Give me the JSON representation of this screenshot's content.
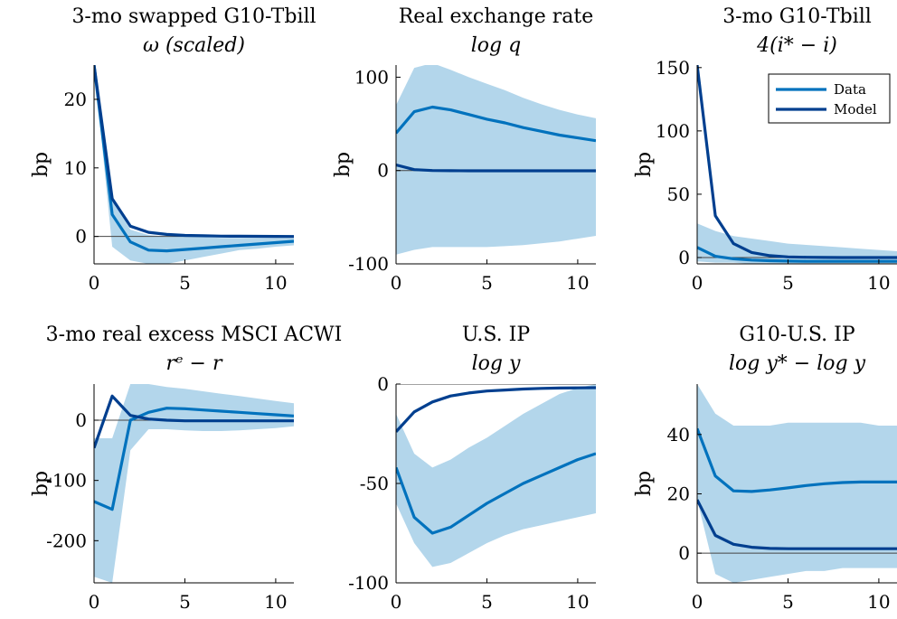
{
  "colors": {
    "data": "#0072BD",
    "model": "#003F8F",
    "band": "#B3D6EB",
    "axis": "#000000"
  },
  "legend": {
    "data": "Data",
    "model": "Model"
  },
  "chart_data": [
    {
      "type": "line",
      "title": "3-mo swapped G10-Tbill",
      "subtitle": "ω (scaled)",
      "ylabel": "bp",
      "xlim": [
        0,
        11
      ],
      "ylim": [
        -4,
        25
      ],
      "xticks": [
        0,
        5,
        10
      ],
      "yticks": [
        0,
        10,
        20
      ],
      "x": [
        0,
        1,
        2,
        3,
        4,
        5,
        6,
        7,
        8,
        9,
        10,
        11
      ],
      "band": {
        "lower": [
          25,
          -1.5,
          -3.5,
          -4,
          -4,
          -3.5,
          -3,
          -2.5,
          -2,
          -1.8,
          -1.5,
          -1.3
        ],
        "upper": [
          25,
          5.5,
          1,
          0.2,
          0,
          0,
          -0.1,
          -0.2,
          -0.2,
          -0.2,
          -0.2,
          -0.2
        ]
      },
      "series": [
        {
          "name": "Data",
          "values": [
            25,
            3.2,
            -0.8,
            -2,
            -2.1,
            -1.9,
            -1.7,
            -1.5,
            -1.3,
            -1.1,
            -0.9,
            -0.7
          ]
        },
        {
          "name": "Model",
          "values": [
            25,
            5.5,
            1.5,
            0.6,
            0.3,
            0.15,
            0.1,
            0.05,
            0.03,
            0.02,
            0.01,
            0
          ]
        }
      ]
    },
    {
      "type": "line",
      "title": "Real exchange rate",
      "subtitle": "log q",
      "ylabel": "bp",
      "xlim": [
        0,
        11
      ],
      "ylim": [
        -100,
        113
      ],
      "xticks": [
        0,
        5,
        10
      ],
      "yticks": [
        -100,
        0,
        100
      ],
      "x": [
        0,
        1,
        2,
        3,
        4,
        5,
        6,
        7,
        8,
        9,
        10,
        11
      ],
      "band": {
        "lower": [
          -90,
          -85,
          -82,
          -82,
          -82,
          -82,
          -81,
          -80,
          -78,
          -76,
          -73,
          -70
        ],
        "upper": [
          70,
          110,
          115,
          108,
          100,
          93,
          86,
          78,
          71,
          65,
          60,
          56
        ]
      },
      "series": [
        {
          "name": "Data",
          "values": [
            40,
            63,
            68,
            65,
            60,
            55,
            51,
            46,
            42,
            38,
            35,
            32
          ]
        },
        {
          "name": "Model",
          "values": [
            6,
            1,
            0,
            -0.2,
            -0.3,
            -0.3,
            -0.3,
            -0.3,
            -0.3,
            -0.3,
            -0.3,
            -0.3
          ]
        }
      ]
    },
    {
      "type": "line",
      "title": "3-mo G10-Tbill",
      "subtitle": "4(i* − i)",
      "ylabel": "bp",
      "legend_position": "top-right",
      "xlim": [
        0,
        11
      ],
      "ylim": [
        -5,
        152
      ],
      "xticks": [
        0,
        5,
        10
      ],
      "yticks": [
        0,
        50,
        100,
        150
      ],
      "x": [
        0,
        1,
        2,
        3,
        4,
        5,
        6,
        7,
        8,
        9,
        10,
        11
      ],
      "band": {
        "lower": [
          -3,
          -4,
          -4,
          -5,
          -5,
          -5,
          -5,
          -5,
          -5,
          -5,
          -5,
          -5
        ],
        "upper": [
          27,
          21,
          17,
          15,
          13,
          11,
          10,
          9,
          8,
          7,
          6,
          5
        ]
      },
      "series": [
        {
          "name": "Data",
          "values": [
            8,
            1,
            -1,
            -2,
            -2.5,
            -2.8,
            -3,
            -3,
            -3,
            -3,
            -3,
            -3
          ]
        },
        {
          "name": "Model",
          "values": [
            152,
            33,
            11,
            4,
            1.5,
            0.5,
            0.2,
            0.1,
            0,
            0,
            0,
            0
          ]
        }
      ]
    },
    {
      "type": "line",
      "title": "3-mo real excess MSCI ACWI",
      "subtitle": "rᵉ − r",
      "ylabel": "bp",
      "xlim": [
        0,
        11
      ],
      "ylim": [
        -270,
        60
      ],
      "xticks": [
        0,
        5,
        10
      ],
      "yticks": [
        -200,
        -100,
        0
      ],
      "x": [
        0,
        1,
        2,
        3,
        4,
        5,
        6,
        7,
        8,
        9,
        10,
        11
      ],
      "band": {
        "lower": [
          -260,
          -270,
          -50,
          -15,
          -15,
          -17,
          -18,
          -18,
          -17,
          -15,
          -13,
          -10
        ],
        "upper": [
          -30,
          -30,
          60,
          60,
          55,
          52,
          48,
          44,
          40,
          36,
          32,
          28
        ]
      },
      "series": [
        {
          "name": "Data",
          "values": [
            -135,
            -148,
            0,
            13,
            20,
            19,
            17,
            15,
            13,
            11,
            9,
            7
          ]
        },
        {
          "name": "Model",
          "values": [
            -46,
            40,
            8,
            2,
            0,
            -1,
            -1,
            -1,
            -1,
            -1,
            -1,
            -1
          ]
        }
      ]
    },
    {
      "type": "line",
      "title": "U.S. IP",
      "subtitle": "log y",
      "ylabel": "",
      "xlim": [
        0,
        11
      ],
      "ylim": [
        -100,
        0
      ],
      "xticks": [
        0,
        5,
        10
      ],
      "yticks": [
        -100,
        -50,
        0
      ],
      "x": [
        0,
        1,
        2,
        3,
        4,
        5,
        6,
        7,
        8,
        9,
        10,
        11
      ],
      "band": {
        "lower": [
          -60,
          -80,
          -92,
          -90,
          -85,
          -80,
          -76,
          -73,
          -71,
          -69,
          -67,
          -65
        ],
        "upper": [
          -15,
          -35,
          -42,
          -38,
          -32,
          -27,
          -21,
          -15,
          -10,
          -5,
          -2,
          0
        ]
      },
      "series": [
        {
          "name": "Data",
          "values": [
            -42,
            -67,
            -75,
            -72,
            -66,
            -60,
            -55,
            -50,
            -46,
            -42,
            -38,
            -35
          ]
        },
        {
          "name": "Model",
          "values": [
            -24,
            -14,
            -9,
            -6,
            -4.5,
            -3.5,
            -3,
            -2.5,
            -2.2,
            -2,
            -1.9,
            -1.8
          ]
        }
      ]
    },
    {
      "type": "line",
      "title": "G10-U.S. IP",
      "subtitle": "log y* − log y",
      "ylabel": "bp",
      "xlim": [
        0,
        11
      ],
      "ylim": [
        -10,
        57
      ],
      "xticks": [
        0,
        5,
        10
      ],
      "yticks": [
        0,
        20,
        40
      ],
      "x": [
        0,
        1,
        2,
        3,
        4,
        5,
        6,
        7,
        8,
        9,
        10,
        11
      ],
      "band": {
        "lower": [
          18,
          -7,
          -10,
          -9,
          -8,
          -7,
          -6,
          -6,
          -5,
          -5,
          -5,
          -5
        ],
        "upper": [
          57,
          47,
          43,
          43,
          43,
          44,
          44,
          44,
          44,
          44,
          43,
          43
        ]
      },
      "series": [
        {
          "name": "Data",
          "values": [
            42,
            26,
            21,
            20.8,
            21.3,
            22,
            22.8,
            23.4,
            23.8,
            24,
            24,
            24
          ]
        },
        {
          "name": "Model",
          "values": [
            18,
            6,
            3,
            2,
            1.6,
            1.5,
            1.5,
            1.5,
            1.5,
            1.5,
            1.5,
            1.5
          ]
        }
      ]
    }
  ]
}
